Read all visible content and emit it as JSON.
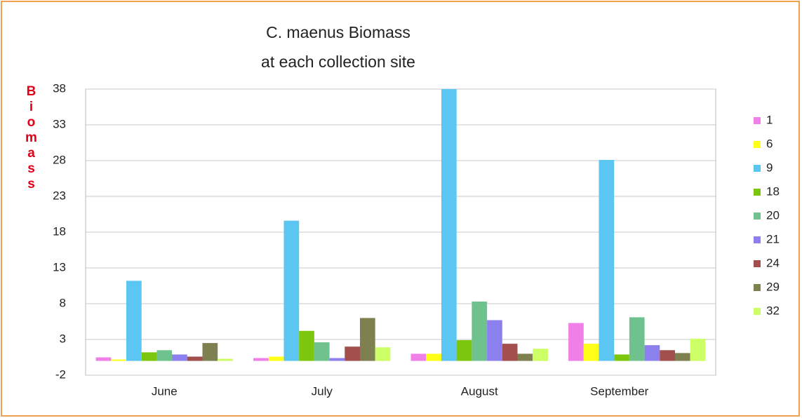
{
  "chart_data": {
    "type": "bar",
    "title": [
      "C. maenus Biomass",
      "at each collection site"
    ],
    "y_label": "Biomass",
    "categories": [
      "June",
      "July",
      "August",
      "September"
    ],
    "series": [
      {
        "name": "1",
        "color": "#f07fe8",
        "values": [
          0.5,
          0.4,
          1.0,
          5.3
        ]
      },
      {
        "name": "6",
        "color": "#ffff1a",
        "values": [
          0.2,
          0.6,
          1.0,
          2.4
        ]
      },
      {
        "name": "9",
        "color": "#5cc6f2",
        "values": [
          11.2,
          19.6,
          38,
          28.1
        ]
      },
      {
        "name": "18",
        "color": "#7cc70e",
        "values": [
          1.2,
          4.2,
          2.9,
          0.9
        ]
      },
      {
        "name": "20",
        "color": "#6fc28e",
        "values": [
          1.5,
          2.6,
          8.3,
          6.1
        ]
      },
      {
        "name": "21",
        "color": "#8c80ee",
        "values": [
          0.9,
          0.4,
          5.7,
          2.2
        ]
      },
      {
        "name": "24",
        "color": "#a24f4d",
        "values": [
          0.6,
          2.0,
          2.4,
          1.5
        ]
      },
      {
        "name": "29",
        "color": "#7f8050",
        "values": [
          2.5,
          6.0,
          1.0,
          1.1
        ]
      },
      {
        "name": "32",
        "color": "#ccff66",
        "values": [
          0.3,
          1.9,
          1.7,
          3.1
        ]
      }
    ],
    "ylim": [
      -2,
      38
    ],
    "yticks": [
      -2,
      3,
      8,
      13,
      18,
      23,
      28,
      33,
      38
    ],
    "grid": true,
    "legend": "right"
  }
}
